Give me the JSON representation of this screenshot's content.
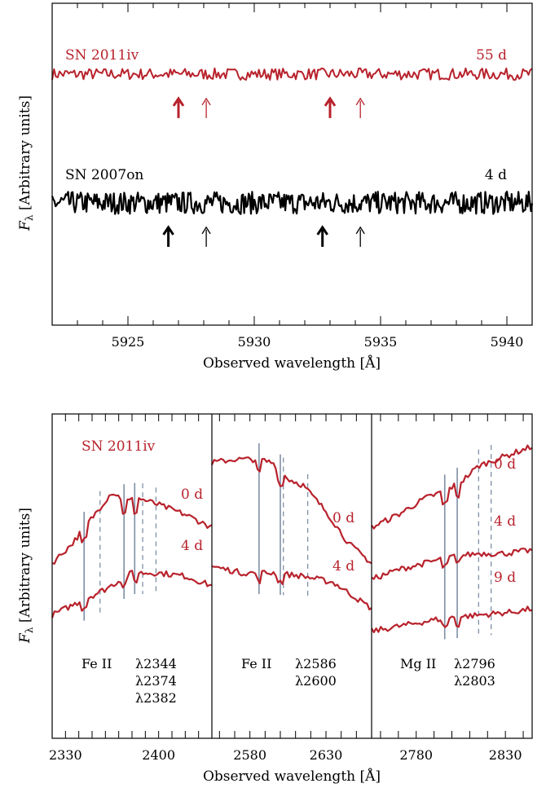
{
  "colors": {
    "sn2011iv": "#b8222c",
    "sn2007on": "#000000",
    "ion_line": "#7f8fa6"
  },
  "chart_data": [
    {
      "type": "line",
      "xlabel": "Observed wavelength [Å]",
      "ylabel_sym": "F",
      "ylabel_sub": "λ",
      "ylabel_rest": " [Arbitrary units]",
      "xlim": [
        5922,
        5941
      ],
      "xticks": [
        5925,
        5930,
        5935,
        5940
      ],
      "grid": false,
      "series": [
        {
          "name": "SN 2011iv",
          "epoch": "55 d",
          "color": "#b8222c",
          "level": 0.78,
          "noise": 0.018,
          "markers": [
            {
              "x": 5927.0,
              "bold": true
            },
            {
              "x": 5928.1,
              "bold": false
            },
            {
              "x": 5933.0,
              "bold": true
            },
            {
              "x": 5934.2,
              "bold": false
            }
          ]
        },
        {
          "name": "SN 2007on",
          "epoch": "4 d",
          "color": "#000000",
          "level": 0.38,
          "noise": 0.035,
          "markers": [
            {
              "x": 5926.6,
              "bold": true
            },
            {
              "x": 5928.1,
              "bold": false
            },
            {
              "x": 5932.7,
              "bold": true
            },
            {
              "x": 5934.2,
              "bold": false
            }
          ]
        }
      ]
    },
    {
      "type": "line",
      "title": "SN 2011iv",
      "xlabel": "Observed wavelength [Å]",
      "ylabel_sym": "F",
      "ylabel_sub": "λ",
      "ylabel_rest": " [Arbitrary units]",
      "panels": [
        {
          "xlim": [
            2320,
            2440
          ],
          "xticks": [
            2330,
            2400
          ],
          "ion": "Fe II",
          "wavelengths": [
            "λ2344",
            "λ2374",
            "λ2382"
          ],
          "solid_lines": [
            2344,
            2374,
            2382
          ],
          "dashed_lines": [
            2356,
            2388,
            2398
          ],
          "spectra": [
            {
              "epoch": "0 d",
              "x": [
                2320,
                2335,
                2350,
                2365,
                2375,
                2385,
                2400,
                2420,
                2440
              ],
              "y": [
                0.54,
                0.6,
                0.68,
                0.76,
                0.73,
                0.74,
                0.72,
                0.69,
                0.65
              ]
            },
            {
              "epoch": "4 d",
              "x": [
                2320,
                2340,
                2360,
                2380,
                2400,
                2420,
                2440
              ],
              "y": [
                0.38,
                0.42,
                0.46,
                0.51,
                0.51,
                0.5,
                0.47
              ]
            }
          ]
        },
        {
          "xlim": [
            2555,
            2660
          ],
          "xticks": [
            2580,
            2630
          ],
          "ion": "Fe II",
          "wavelengths": [
            "λ2586",
            "λ2600"
          ],
          "solid_lines": [
            2586,
            2600
          ],
          "dashed_lines": [
            2602,
            2618
          ],
          "spectra": [
            {
              "epoch": "0 d",
              "x": [
                2555,
                2570,
                2585,
                2595,
                2605,
                2615,
                2630,
                2645,
                2660
              ],
              "y": [
                0.85,
                0.86,
                0.86,
                0.85,
                0.8,
                0.78,
                0.7,
                0.6,
                0.54
              ]
            },
            {
              "epoch": "4 d",
              "x": [
                2555,
                2575,
                2595,
                2615,
                2635,
                2660
              ],
              "y": [
                0.53,
                0.51,
                0.51,
                0.5,
                0.48,
                0.4
              ]
            }
          ]
        },
        {
          "xlim": [
            2755,
            2845
          ],
          "xticks": [
            2780,
            2830
          ],
          "ion": "Mg II",
          "wavelengths": [
            "λ2796",
            "λ2803"
          ],
          "solid_lines": [
            2796,
            2803
          ],
          "dashed_lines": [
            2815,
            2822
          ],
          "spectra": [
            {
              "epoch": "0 d",
              "x": [
                2755,
                2770,
                2785,
                2795,
                2805,
                2815,
                2830,
                2845
              ],
              "y": [
                0.65,
                0.69,
                0.74,
                0.76,
                0.79,
                0.84,
                0.87,
                0.9
              ]
            },
            {
              "epoch": "4 d",
              "x": [
                2755,
                2770,
                2785,
                2800,
                2815,
                2830,
                2845
              ],
              "y": [
                0.49,
                0.52,
                0.54,
                0.56,
                0.57,
                0.57,
                0.58
              ]
            },
            {
              "epoch": "9 d",
              "x": [
                2755,
                2775,
                2795,
                2815,
                2835,
                2845
              ],
              "y": [
                0.33,
                0.35,
                0.37,
                0.38,
                0.39,
                0.4
              ]
            }
          ]
        }
      ]
    }
  ]
}
